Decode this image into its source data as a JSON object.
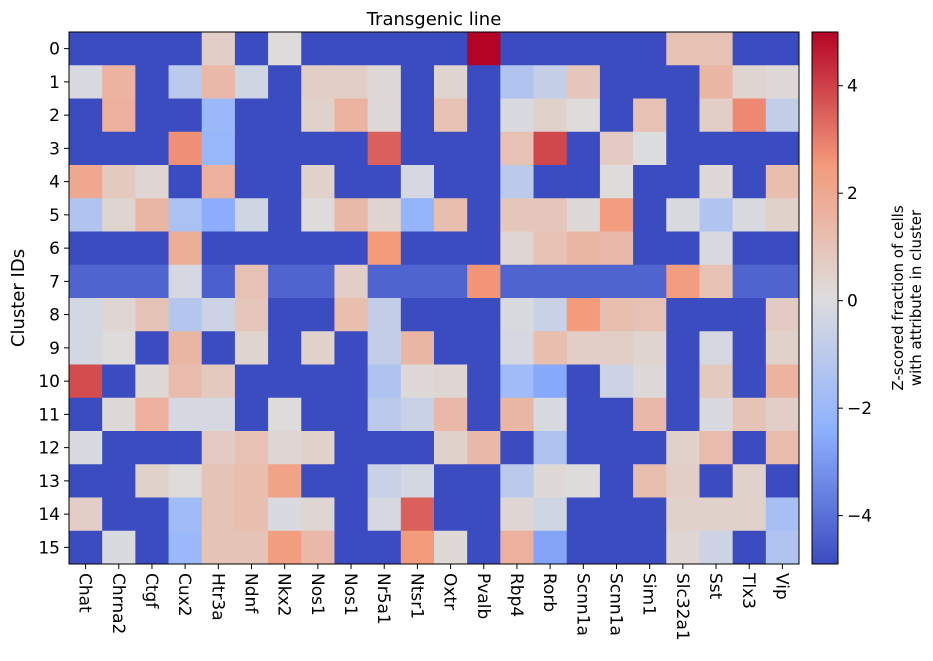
{
  "chart_data": {
    "type": "heatmap",
    "title": "Transgenic line",
    "xlabel": "",
    "ylabel": "Cluster IDs",
    "x_categories": [
      "Chat",
      "Chrna2",
      "Ctgf",
      "Cux2",
      "Htr3a",
      "Ndnf",
      "Nkx2",
      "Nos1",
      "Nos1",
      "Nr5a1",
      "Ntsr1",
      "Oxtr",
      "Pvalb",
      "Rbp4",
      "Rorb",
      "Scnn1a",
      "Scnn1a",
      "Sim1",
      "Slc32a1",
      "Sst",
      "Tlx3",
      "Vip"
    ],
    "y_categories": [
      "0",
      "1",
      "2",
      "3",
      "4",
      "5",
      "6",
      "7",
      "8",
      "9",
      "10",
      "11",
      "12",
      "13",
      "14",
      "15"
    ],
    "values": [
      [
        -4.9,
        -4.9,
        -4.9,
        -4.9,
        0.6,
        -4.9,
        0.1,
        -4.9,
        -4.9,
        -4.9,
        -4.9,
        -4.9,
        5.0,
        -4.9,
        -4.9,
        -4.9,
        -4.9,
        -4.9,
        1.1,
        1.1,
        -4.9,
        -4.9
      ],
      [
        -0.1,
        1.6,
        -4.9,
        -1.0,
        1.4,
        -0.4,
        -4.9,
        0.6,
        0.6,
        0.2,
        -4.9,
        0.4,
        -4.9,
        -1.3,
        -0.7,
        0.9,
        -4.9,
        -4.9,
        -4.9,
        1.5,
        0.4,
        0.2
      ],
      [
        -4.9,
        1.7,
        -4.9,
        -4.9,
        -2.0,
        -4.9,
        -4.9,
        0.5,
        1.6,
        0.2,
        -4.9,
        1.1,
        -4.9,
        -0.1,
        0.5,
        0.1,
        -4.9,
        1.1,
        -4.9,
        0.6,
        2.8,
        -0.8
      ],
      [
        -4.9,
        -4.9,
        -4.9,
        2.7,
        -2.1,
        -4.9,
        -4.9,
        -4.9,
        -4.9,
        3.5,
        -4.9,
        -4.9,
        -4.9,
        1.1,
        3.9,
        -4.9,
        0.7,
        0.0,
        -4.9,
        -4.9,
        -4.9,
        -4.9
      ],
      [
        2.0,
        0.8,
        0.3,
        -4.9,
        1.7,
        -4.9,
        -4.9,
        0.5,
        -4.9,
        -4.9,
        -0.2,
        -4.9,
        -4.9,
        -1.0,
        -4.9,
        -4.9,
        0.1,
        -4.9,
        -4.9,
        0.2,
        -4.9,
        1.2
      ],
      [
        -1.3,
        0.4,
        1.5,
        -1.5,
        -2.5,
        -0.4,
        -4.9,
        0.1,
        1.4,
        0.4,
        -2.2,
        1.2,
        -4.9,
        0.9,
        0.9,
        0.2,
        2.4,
        -4.9,
        -0.1,
        -1.3,
        -0.1,
        0.5
      ],
      [
        -4.9,
        -4.9,
        -4.9,
        1.8,
        -4.9,
        -4.9,
        -4.9,
        -4.9,
        -4.9,
        2.5,
        -4.9,
        -4.9,
        -4.9,
        0.3,
        1.1,
        1.5,
        1.4,
        -4.9,
        -4.9,
        -0.1,
        -4.9,
        -4.9
      ],
      [
        -4.3,
        -4.3,
        -4.3,
        -0.2,
        -4.4,
        1.1,
        -4.3,
        -4.3,
        0.6,
        -4.3,
        -4.3,
        -4.3,
        2.6,
        -4.3,
        -4.3,
        -4.3,
        -4.3,
        -4.3,
        2.4,
        1.1,
        -4.3,
        -4.3
      ],
      [
        -0.3,
        0.3,
        1.0,
        -1.2,
        -0.5,
        0.9,
        -4.9,
        -4.9,
        1.2,
        -0.8,
        -4.9,
        -4.9,
        -4.9,
        -0.1,
        -0.6,
        2.5,
        1.2,
        1.1,
        -4.9,
        -4.9,
        -4.9,
        0.7
      ],
      [
        -0.3,
        0.1,
        -4.9,
        1.5,
        -4.9,
        0.4,
        -4.9,
        0.5,
        -4.9,
        -0.8,
        1.5,
        -4.9,
        -4.9,
        -0.2,
        1.2,
        0.6,
        0.6,
        0.4,
        -4.9,
        -0.2,
        -4.9,
        0.5
      ],
      [
        3.8,
        -4.9,
        0.2,
        1.3,
        0.8,
        -4.9,
        -4.9,
        -4.9,
        -4.9,
        -1.4,
        0.2,
        0.3,
        -4.9,
        -1.8,
        -2.6,
        -4.9,
        -0.5,
        0.2,
        -4.9,
        0.8,
        -4.9,
        1.6
      ],
      [
        -4.9,
        0.2,
        1.7,
        -0.2,
        -0.2,
        -4.9,
        0.1,
        -4.9,
        -4.9,
        -1.0,
        -0.6,
        1.4,
        -4.9,
        1.5,
        -0.1,
        -4.9,
        -4.9,
        1.4,
        -4.9,
        -0.1,
        1.0,
        0.6
      ],
      [
        -0.1,
        -4.9,
        -4.9,
        -4.9,
        0.7,
        1.1,
        0.3,
        0.5,
        -4.9,
        -4.9,
        -4.9,
        0.5,
        1.4,
        -4.9,
        -1.4,
        -4.9,
        -4.9,
        -4.9,
        0.5,
        1.3,
        -4.9,
        1.3
      ],
      [
        -4.9,
        -4.9,
        0.5,
        0.1,
        1.0,
        1.2,
        2.2,
        -4.9,
        -4.9,
        -0.6,
        -0.3,
        -4.9,
        -4.9,
        -1.0,
        0.2,
        0.1,
        -4.9,
        1.2,
        0.6,
        -4.9,
        0.5,
        -4.9
      ],
      [
        0.6,
        -4.9,
        -4.9,
        -1.8,
        1.0,
        1.2,
        -0.1,
        0.3,
        -4.9,
        -0.2,
        3.5,
        -4.9,
        -4.9,
        0.3,
        -0.4,
        -4.9,
        -4.9,
        -4.9,
        0.5,
        0.5,
        0.5,
        -1.6
      ],
      [
        -4.9,
        -0.1,
        -4.9,
        -2.0,
        1.0,
        1.0,
        2.4,
        1.4,
        -4.9,
        -4.9,
        2.5,
        0.2,
        -4.9,
        1.7,
        -2.7,
        -4.9,
        -4.9,
        -4.9,
        0.3,
        -0.5,
        -4.9,
        -1.3
      ]
    ],
    "colorbar": {
      "label_lines": [
        "Z-scored fraction of cells",
        "with attribute in cluster"
      ],
      "range": [
        -4.9,
        5.0
      ],
      "ticks": [
        -4,
        -2,
        0,
        2,
        4
      ],
      "tick_labels": [
        "−4",
        "−2",
        "0",
        "2",
        "4"
      ],
      "colormap": "coolwarm"
    },
    "grid": false
  }
}
